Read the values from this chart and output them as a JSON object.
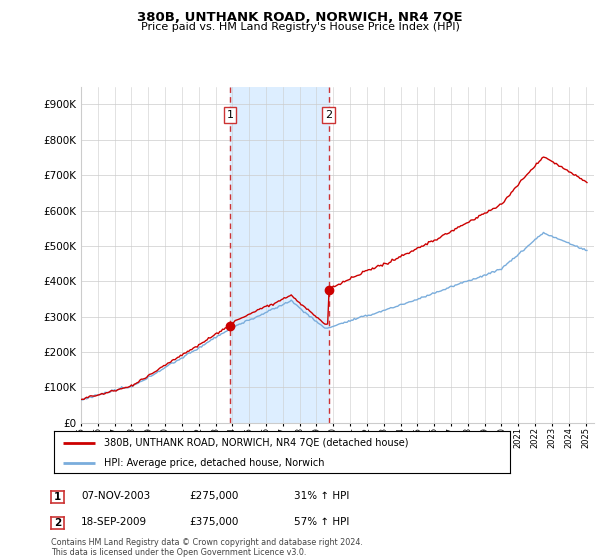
{
  "title": "380B, UNTHANK ROAD, NORWICH, NR4 7QE",
  "subtitle": "Price paid vs. HM Land Registry's House Price Index (HPI)",
  "ylim": [
    0,
    950000
  ],
  "yticks": [
    0,
    100000,
    200000,
    300000,
    400000,
    500000,
    600000,
    700000,
    800000,
    900000
  ],
  "ytick_labels": [
    "£0",
    "£100K",
    "£200K",
    "£300K",
    "£400K",
    "£500K",
    "£600K",
    "£700K",
    "£800K",
    "£900K"
  ],
  "hpi_color": "#7aaddc",
  "price_color": "#cc0000",
  "sale1_date": 2003.85,
  "sale1_price": 275000,
  "sale1_label": "1",
  "sale2_date": 2009.72,
  "sale2_price": 375000,
  "sale2_label": "2",
  "shade_color": "#ddeeff",
  "vline_color": "#cc3333",
  "grid_color": "#cccccc",
  "bg_color": "#f0f4fa",
  "legend_line1": "380B, UNTHANK ROAD, NORWICH, NR4 7QE (detached house)",
  "legend_line2": "HPI: Average price, detached house, Norwich",
  "table_row1": [
    "1",
    "07-NOV-2003",
    "£275,000",
    "31% ↑ HPI"
  ],
  "table_row2": [
    "2",
    "18-SEP-2009",
    "£375,000",
    "57% ↑ HPI"
  ],
  "footer": "Contains HM Land Registry data © Crown copyright and database right 2024.\nThis data is licensed under the Open Government Licence v3.0.",
  "xmin": 1995,
  "xmax": 2025.5
}
